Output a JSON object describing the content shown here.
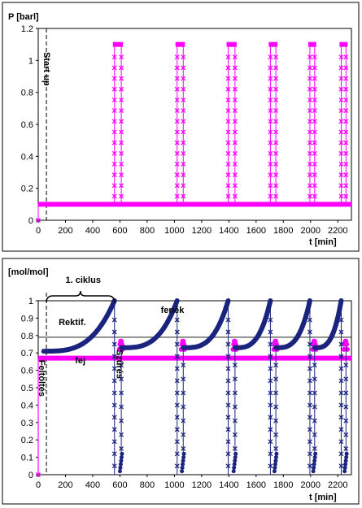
{
  "chart_data": [
    {
      "type": "scatter",
      "ylabel": "P [barl]",
      "xlabel": "t [min]",
      "xlim": [
        0,
        2300
      ],
      "ylim": [
        0,
        1.2
      ],
      "xticks": [
        0,
        200,
        400,
        600,
        800,
        1000,
        1200,
        1400,
        1600,
        1800,
        2000,
        2200
      ],
      "yticks": [
        0,
        0.2,
        0.4,
        0.6,
        0.8,
        1,
        1.2
      ],
      "ytick_labels": [
        "0",
        "0.2",
        "0.4",
        "0.6",
        "0.8",
        "1",
        "1.2"
      ],
      "grid": false,
      "colors": {
        "series": "#ff00ff",
        "frame": "#000000",
        "dash": "#000000"
      },
      "annotations": [
        {
          "text": "Start up",
          "x": 60
        }
      ],
      "vline_x": 60,
      "low_level": 0.1,
      "high_level": 1.1,
      "pulses": [
        [
          560,
          610
        ],
        [
          1020,
          1065
        ],
        [
          1395,
          1445
        ],
        [
          1705,
          1745
        ],
        [
          1995,
          2030
        ],
        [
          2225,
          2260
        ]
      ],
      "series": [
        {
          "values_note": ""
        }
      ]
    },
    {
      "type": "scatter",
      "ylabel": "[mol/mol]",
      "xlabel": "t [min]",
      "xlim": [
        0,
        2300
      ],
      "ylim": [
        0,
        1
      ],
      "xticks": [
        0,
        200,
        400,
        600,
        800,
        1000,
        1200,
        1400,
        1600,
        1800,
        2000,
        2200
      ],
      "yticks": [
        0,
        0.1,
        0.2,
        0.3,
        0.4,
        0.5,
        0.6,
        0.7,
        0.8,
        0.9,
        1
      ],
      "ytick_labels": [
        "0",
        "0.1",
        "0.2",
        "0.3",
        "0.4",
        "0.5",
        "0.6",
        "0.7",
        "0.8",
        "0.9",
        "1"
      ],
      "hlines": [
        0.79,
        0.67
      ],
      "grid": false,
      "colors": {
        "navy": "#1a237e",
        "magenta": "#ff00ff",
        "frame": "#000000"
      },
      "annotations": [
        {
          "text": "1. ciklus",
          "x": 330,
          "y": 1.05
        },
        {
          "text": "Rektif.",
          "x": 150,
          "y": 0.86
        },
        {
          "text": "fenék",
          "x": 900,
          "y": 0.93
        },
        {
          "text": "fej",
          "x": 270,
          "y": 0.64
        },
        {
          "text": "Feltöltés",
          "x": 30,
          "y": 0.5
        },
        {
          "text": "Szűrés",
          "x": 600,
          "y": 0.5
        }
      ],
      "vline_x": 60,
      "rektif_segments": [
        [
          40,
          560
        ],
        [
          610,
          1020
        ],
        [
          1065,
          1395
        ],
        [
          1445,
          1705
        ],
        [
          1745,
          1995
        ],
        [
          2030,
          2225
        ]
      ],
      "drop_times": [
        560,
        1020,
        1395,
        1705,
        1995,
        2225
      ],
      "recover_times": [
        610,
        1065,
        1445,
        1745,
        2030,
        2260
      ]
    }
  ]
}
